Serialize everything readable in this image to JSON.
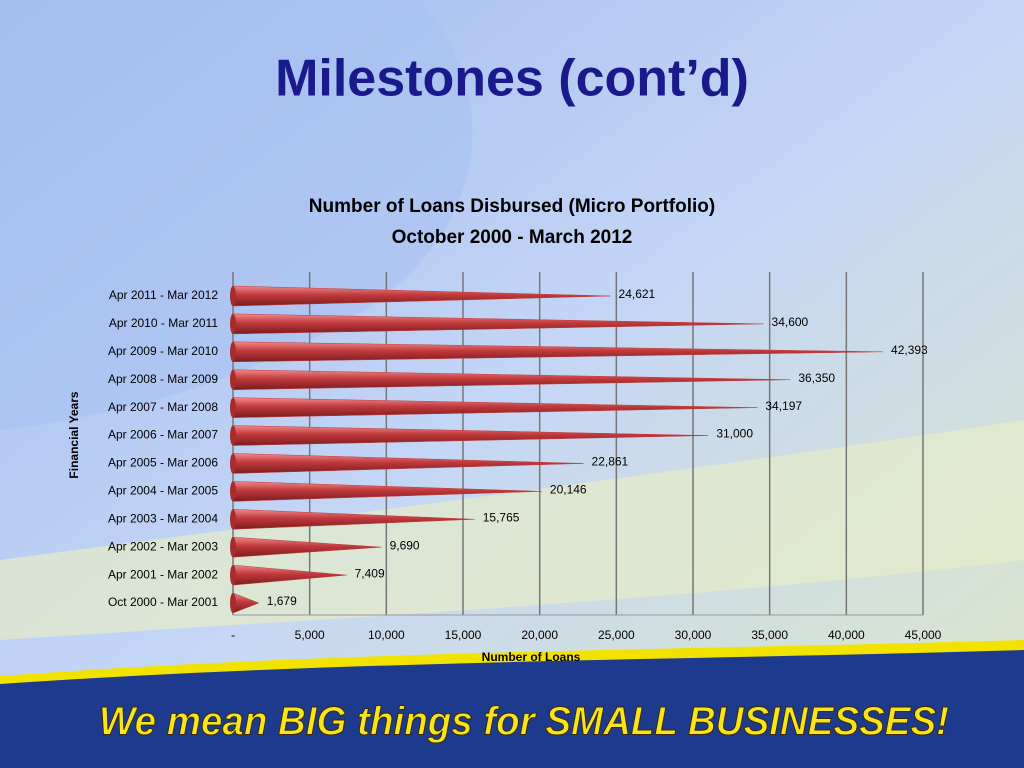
{
  "slide": {
    "title": "Milestones (cont’d)",
    "slogan": "We mean BIG things for SMALL BUSINESSES!"
  },
  "chart_data": {
    "type": "bar",
    "orientation": "horizontal",
    "title": "Number of Loans Disbursed (Micro Portfolio)",
    "subtitle": "October 2000 - March 2012",
    "x_label": "Number of Loans",
    "y_label": "Financial Years",
    "categories": [
      "Apr 2011 - Mar 2012",
      "Apr 2010 - Mar 2011",
      "Apr 2009 - Mar 2010",
      "Apr 2008 - Mar 2009",
      "Apr 2007 - Mar 2008",
      "Apr 2006 - Mar 2007",
      "Apr 2005 - Mar 2006",
      "Apr 2004 - Mar 2005",
      "Apr 2003 - Mar 2004",
      "Apr 2002 - Mar 2003",
      "Apr 2001 - Mar 2002",
      "Oct 2000 - Mar 2001"
    ],
    "values": [
      24621,
      34600,
      42393,
      36350,
      34197,
      31000,
      22861,
      20146,
      15765,
      9690,
      7409,
      1679
    ],
    "value_labels": [
      "24,621",
      "34,600",
      "42,393",
      "36,350",
      "34,197",
      "31,000",
      "22,861",
      "20,146",
      "15,765",
      "9,690",
      "7,409",
      "1,679"
    ],
    "color": "#c0393b",
    "xlim": [
      0,
      45000
    ],
    "xticks": [
      {
        "value": 0,
        "label": "-"
      },
      {
        "value": 5000,
        "label": "5,000"
      },
      {
        "value": 10000,
        "label": "10,000"
      },
      {
        "value": 15000,
        "label": "15,000"
      },
      {
        "value": 20000,
        "label": "20,000"
      },
      {
        "value": 25000,
        "label": "25,000"
      },
      {
        "value": 30000,
        "label": "30,000"
      },
      {
        "value": 35000,
        "label": "35,000"
      },
      {
        "value": 40000,
        "label": "40,000"
      },
      {
        "value": 45000,
        "label": "45,000"
      }
    ],
    "grid": true
  }
}
